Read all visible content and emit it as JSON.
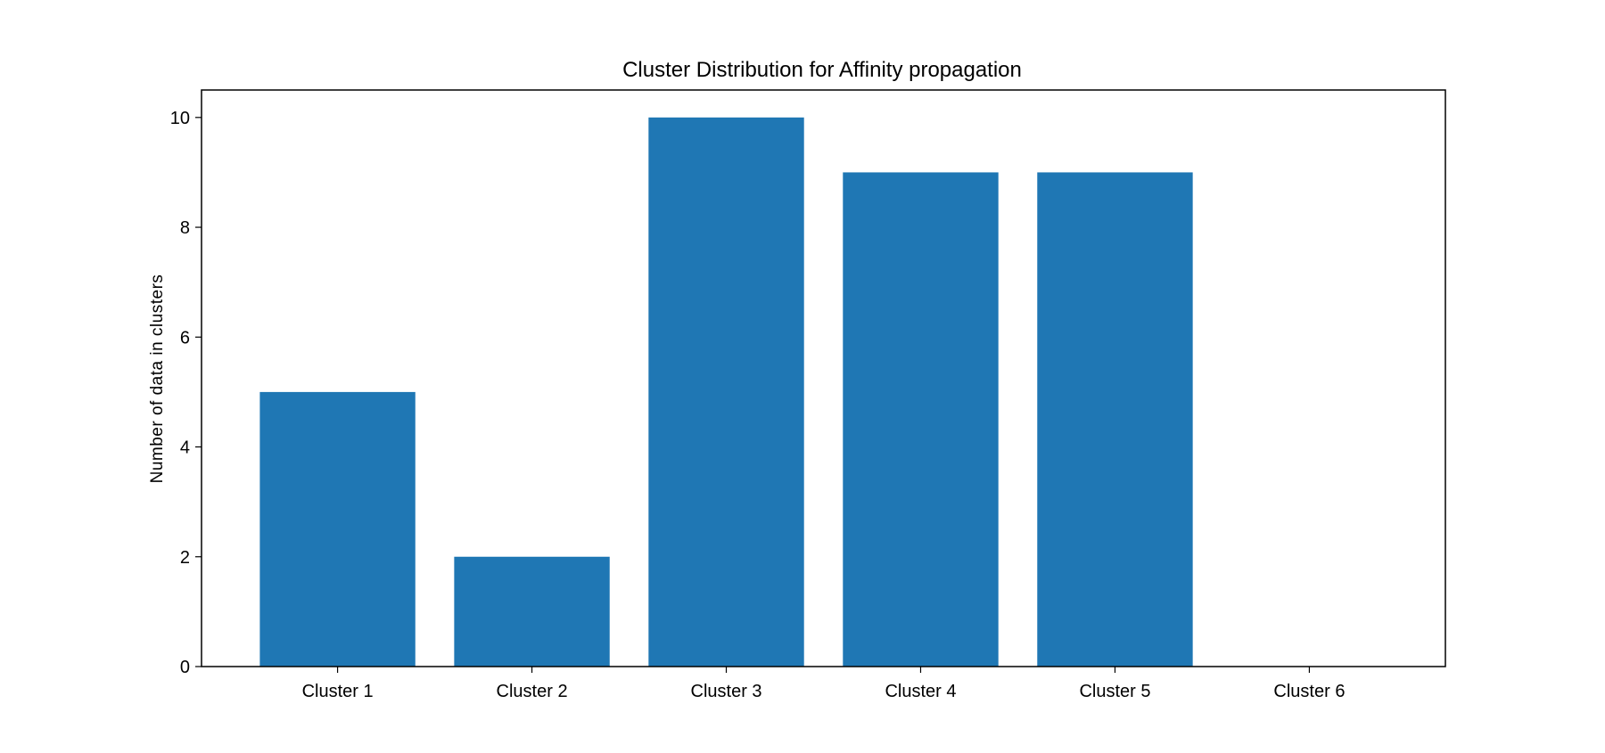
{
  "chart_data": {
    "type": "bar",
    "title": "Cluster Distribution for Affinity propagation",
    "xlabel": "",
    "ylabel": "Number of data in clusters",
    "categories": [
      "Cluster 1",
      "Cluster 2",
      "Cluster 3",
      "Cluster 4",
      "Cluster 5",
      "Cluster 6"
    ],
    "values": [
      5,
      2,
      10,
      9,
      9,
      0
    ],
    "ylim": [
      0,
      10.5
    ],
    "yticks": [
      0,
      2,
      4,
      6,
      8,
      10
    ],
    "ytick_labels": [
      "0",
      "2",
      "4",
      "6",
      "8",
      "10"
    ],
    "grid": false,
    "legend": "none",
    "bar_color": "#1f77b4"
  }
}
